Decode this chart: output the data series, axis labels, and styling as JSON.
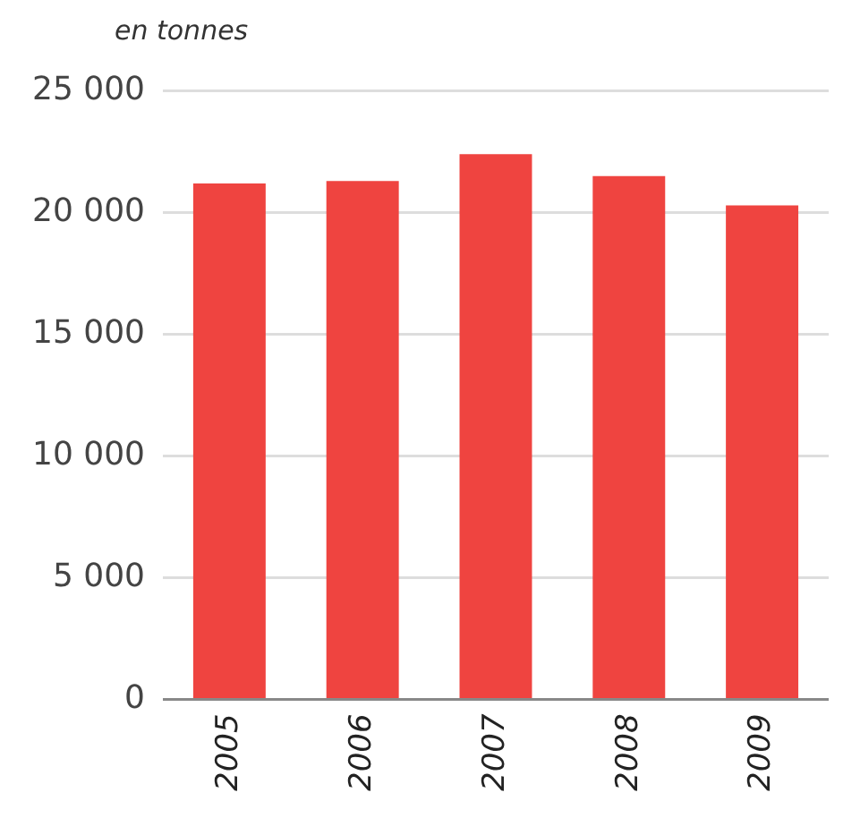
{
  "chart_data": {
    "type": "bar",
    "ylabel": "en tonnes",
    "categories": [
      "2005",
      "2006",
      "2007",
      "2008",
      "2009"
    ],
    "values": [
      21200,
      21300,
      22400,
      21500,
      20300
    ],
    "color": "#ef4440",
    "ylim": [
      0,
      25000
    ],
    "yticks": [
      0,
      {
        "value": 5000,
        "label": "5 000"
      },
      {
        "value": 10000,
        "label": "10 000"
      },
      {
        "value": 15000,
        "label": "15 000"
      },
      {
        "value": 20000,
        "label": "20 000"
      },
      {
        "value": 25000,
        "label": "25 000"
      }
    ],
    "grid": "y",
    "legend": false
  }
}
